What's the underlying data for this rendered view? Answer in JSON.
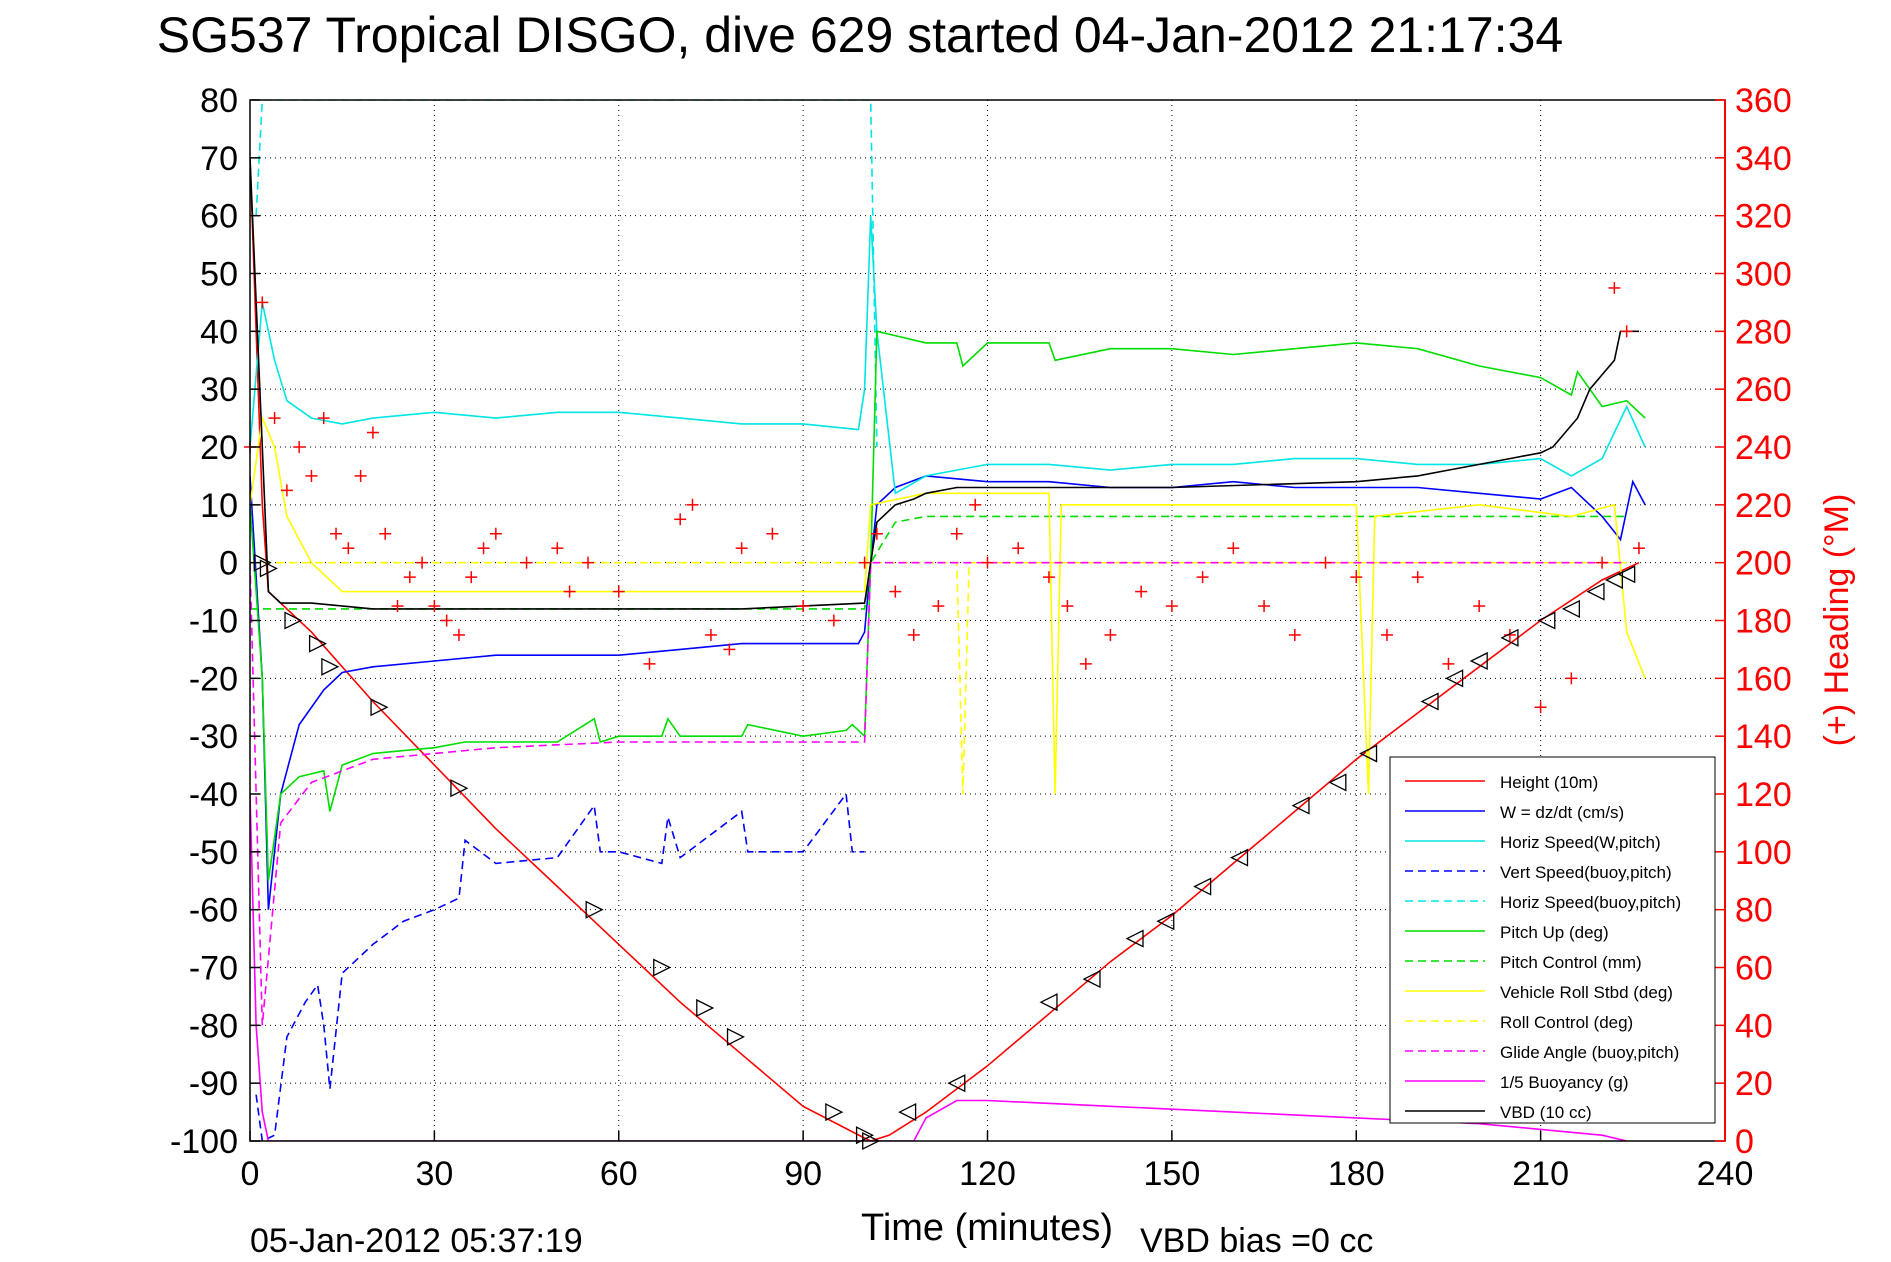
{
  "chart_data": {
    "type": "line",
    "title": "SG537 Tropical DISGO, dive 629 started 04-Jan-2012 21:17:34",
    "xlabel": "Time (minutes)",
    "ylabel": "",
    "y2label": "(+) Heading (°M)",
    "xlim": [
      0,
      240
    ],
    "ylim": [
      -100,
      80
    ],
    "y2lim": [
      0,
      360
    ],
    "x_ticks": [
      0,
      30,
      60,
      90,
      120,
      150,
      180,
      210,
      240
    ],
    "y_ticks": [
      -100,
      -90,
      -80,
      -70,
      -60,
      -50,
      -40,
      -30,
      -20,
      -10,
      0,
      10,
      20,
      30,
      40,
      50,
      60,
      70,
      80
    ],
    "y2_ticks": [
      0,
      20,
      40,
      60,
      80,
      100,
      120,
      140,
      160,
      180,
      200,
      220,
      240,
      260,
      280,
      300,
      320,
      340,
      360
    ],
    "grid": true,
    "legend_position": "bottom-right",
    "footer_left": "05-Jan-2012 05:37:19",
    "footer_right": "VBD bias =0 cc",
    "series": [
      {
        "name": "Height (10m)",
        "color": "#ff0000",
        "dash": "solid",
        "x": [
          0,
          2,
          3,
          10,
          20,
          30,
          40,
          50,
          60,
          70,
          80,
          90,
          100,
          101,
          104,
          110,
          120,
          130,
          140,
          150,
          160,
          170,
          180,
          190,
          200,
          210,
          220,
          224,
          226
        ],
        "y": [
          70,
          10,
          -5,
          -12,
          -24,
          -35,
          -46,
          -56,
          -66,
          -76,
          -85,
          -94,
          -99.5,
          -100,
          -99,
          -95,
          -87,
          -78,
          -69,
          -61,
          -52,
          -43,
          -34,
          -26,
          -18,
          -10,
          -3,
          -1,
          0
        ]
      },
      {
        "name": "W = dz/dt (cm/s)",
        "color": "#0000ff",
        "dash": "solid",
        "x": [
          0,
          2,
          3,
          5,
          8,
          12,
          15,
          20,
          30,
          40,
          50,
          60,
          70,
          80,
          90,
          99,
          100,
          101,
          102,
          105,
          110,
          120,
          130,
          140,
          150,
          160,
          170,
          180,
          190,
          200,
          210,
          215,
          220,
          223,
          225,
          227
        ],
        "y": [
          15,
          -20,
          -60,
          -40,
          -28,
          -22,
          -19,
          -18,
          -17,
          -16,
          -16,
          -16,
          -15,
          -14,
          -14,
          -14,
          -12,
          0,
          10,
          13,
          15,
          14,
          14,
          13,
          13,
          14,
          13,
          13,
          13,
          12,
          11,
          13,
          8,
          4,
          14,
          10
        ]
      },
      {
        "name": "Horiz Speed(W,pitch)",
        "color": "#00e5e5",
        "dash": "solid",
        "x": [
          0,
          2,
          4,
          6,
          10,
          15,
          20,
          30,
          40,
          50,
          60,
          70,
          80,
          90,
          99,
          100,
          101,
          102,
          105,
          110,
          120,
          130,
          140,
          150,
          160,
          170,
          180,
          190,
          200,
          210,
          215,
          220,
          224,
          227
        ],
        "y": [
          20,
          45,
          35,
          28,
          25,
          24,
          25,
          26,
          25,
          26,
          26,
          25,
          24,
          24,
          23,
          30,
          60,
          40,
          12,
          15,
          17,
          17,
          16,
          17,
          17,
          18,
          18,
          17,
          17,
          18,
          15,
          18,
          27,
          20
        ]
      },
      {
        "name": "Vert Speed(buoy,pitch)",
        "color": "#0000ff",
        "dash": "dashed",
        "x": [
          1,
          2,
          4,
          6,
          9,
          11,
          12,
          13,
          15,
          20,
          25,
          30,
          34,
          35,
          40,
          50,
          56,
          57,
          60,
          67,
          68,
          70,
          80,
          81,
          90,
          97,
          98,
          100
        ],
        "y": [
          -92,
          -100,
          -99,
          -82,
          -76,
          -73,
          -80,
          -91,
          -71,
          -66,
          -62,
          -60,
          -58,
          -48,
          -52,
          -51,
          -42,
          -50,
          -50,
          -52,
          -44,
          -51,
          -43,
          -50,
          -50,
          -40,
          -50,
          -50
        ]
      },
      {
        "name": "Horiz Speed(buoy,pitch)",
        "color": "#00e5e5",
        "dash": "dashed",
        "x": [
          1,
          2,
          3,
          100,
          101,
          102
        ],
        "y": [
          60,
          80,
          80,
          80,
          80,
          20
        ]
      },
      {
        "name": "Pitch Up (deg)",
        "color": "#00dd00",
        "dash": "solid",
        "x": [
          0,
          2,
          3,
          5,
          8,
          12,
          13,
          15,
          20,
          30,
          35,
          40,
          50,
          56,
          57,
          60,
          67,
          68,
          70,
          80,
          81,
          90,
          97,
          98,
          100,
          101,
          102,
          110,
          115,
          116,
          120,
          130,
          131,
          140,
          150,
          160,
          170,
          180,
          190,
          200,
          210,
          215,
          216,
          220,
          224,
          227
        ],
        "y": [
          10,
          -20,
          -55,
          -40,
          -37,
          -36,
          -43,
          -35,
          -33,
          -32,
          -31,
          -31,
          -31,
          -27,
          -31,
          -30,
          -30,
          -27,
          -30,
          -30,
          -28,
          -30,
          -29,
          -28,
          -30,
          0,
          40,
          38,
          38,
          34,
          38,
          38,
          35,
          37,
          37,
          36,
          37,
          38,
          37,
          34,
          32,
          29,
          33,
          27,
          28,
          25
        ]
      },
      {
        "name": "Pitch Control (mm)",
        "color": "#00dd00",
        "dash": "dashed",
        "x": [
          0,
          100,
          101,
          105,
          110,
          120,
          150,
          180,
          210,
          224
        ],
        "y": [
          -8,
          -8,
          0,
          7,
          8,
          8,
          8,
          8,
          8,
          8
        ]
      },
      {
        "name": "Vehicle Roll Stbd (deg)",
        "color": "#ffff00",
        "dash": "solid",
        "x": [
          0,
          2,
          4,
          6,
          10,
          15,
          20,
          30,
          60,
          90,
          100,
          101,
          110,
          130,
          131,
          132,
          135,
          150,
          180,
          182,
          183,
          200,
          215,
          222,
          224,
          227
        ],
        "y": [
          10,
          25,
          20,
          8,
          0,
          -5,
          -5,
          -5,
          -5,
          -5,
          -5,
          10,
          12,
          12,
          -40,
          10,
          10,
          10,
          10,
          -40,
          8,
          10,
          8,
          10,
          -12,
          -20
        ]
      },
      {
        "name": "Roll Control (deg)",
        "color": "#ffff00",
        "dash": "dashed",
        "x": [
          0,
          100,
          101,
          115,
          116,
          117,
          224
        ],
        "y": [
          0,
          0,
          0,
          0,
          -40,
          0,
          0
        ]
      },
      {
        "name": "Glide Angle (buoy,pitch)",
        "color": "#ff00ff",
        "dash": "dashed",
        "x": [
          0,
          2,
          5,
          10,
          15,
          20,
          30,
          40,
          60,
          90,
          100,
          101,
          110,
          150,
          200,
          224
        ],
        "y": [
          0,
          -80,
          -45,
          -38,
          -36,
          -34,
          -33,
          -32,
          -31,
          -31,
          -31,
          0,
          0,
          0,
          0,
          0
        ]
      },
      {
        "name": "1/5 Buoyancy (g)",
        "color": "#ff00ff",
        "dash": "solid",
        "x": [
          0,
          1,
          2,
          3,
          108,
          110,
          115,
          120,
          140,
          160,
          180,
          200,
          210,
          220,
          224
        ],
        "y": [
          -40,
          -80,
          -95,
          -100,
          -100,
          -96,
          -93,
          -93,
          -94,
          -95,
          -96,
          -97,
          -98,
          -99,
          -100
        ]
      },
      {
        "name": "VBD (10 cc)",
        "color": "#000000",
        "dash": "solid",
        "x": [
          0,
          2,
          3,
          5,
          10,
          20,
          50,
          80,
          100,
          101,
          102,
          105,
          108,
          110,
          115,
          120,
          150,
          180,
          190,
          195,
          200,
          205,
          210,
          212,
          216,
          218,
          222,
          223,
          226
        ],
        "y": [
          70,
          20,
          -5,
          -7,
          -7,
          -8,
          -8,
          -8,
          -7,
          0,
          7,
          10,
          11,
          12,
          13,
          13,
          13,
          14,
          15,
          16,
          17,
          18,
          19,
          20,
          25,
          30,
          35,
          40,
          40
        ]
      }
    ],
    "heading": {
      "name": "Heading",
      "color": "#ff0000",
      "marker": "+",
      "x": [
        0,
        2,
        4,
        6,
        8,
        10,
        12,
        14,
        16,
        18,
        20,
        22,
        24,
        26,
        28,
        30,
        32,
        34,
        36,
        38,
        40,
        45,
        50,
        52,
        55,
        60,
        65,
        70,
        72,
        75,
        78,
        80,
        85,
        90,
        95,
        100,
        102,
        105,
        108,
        112,
        115,
        118,
        120,
        125,
        130,
        133,
        136,
        140,
        145,
        150,
        155,
        160,
        165,
        170,
        175,
        180,
        185,
        190,
        195,
        200,
        205,
        210,
        215,
        220,
        222,
        224,
        226
      ],
      "y": [
        240,
        290,
        250,
        225,
        240,
        230,
        250,
        210,
        205,
        230,
        245,
        210,
        185,
        195,
        200,
        185,
        180,
        175,
        195,
        205,
        210,
        200,
        205,
        190,
        200,
        190,
        165,
        215,
        220,
        175,
        170,
        205,
        210,
        185,
        180,
        200,
        210,
        190,
        175,
        185,
        210,
        220,
        200,
        205,
        195,
        185,
        165,
        175,
        190,
        185,
        195,
        205,
        185,
        175,
        200,
        195,
        175,
        195,
        165,
        185,
        175,
        150,
        160,
        200,
        295,
        280,
        205
      ]
    },
    "triangles": {
      "x": [
        2,
        3,
        7,
        11,
        13,
        21,
        34,
        56,
        67,
        74,
        79,
        95,
        100,
        101,
        107,
        115,
        130,
        137,
        144,
        149,
        155,
        161,
        171,
        177,
        182,
        192,
        196,
        200,
        205,
        211,
        215,
        219,
        222,
        224
      ],
      "y": [
        0,
        -1,
        -10,
        -14,
        -18,
        -25,
        -39,
        -60,
        -70,
        -77,
        -82,
        -95,
        -99,
        -100,
        -95,
        -90,
        -76,
        -72,
        -65,
        -62,
        -56,
        -51,
        -42,
        -38,
        -33,
        -24,
        -20,
        -17,
        -13,
        -10,
        -8,
        -5,
        -3,
        -2
      ]
    }
  }
}
